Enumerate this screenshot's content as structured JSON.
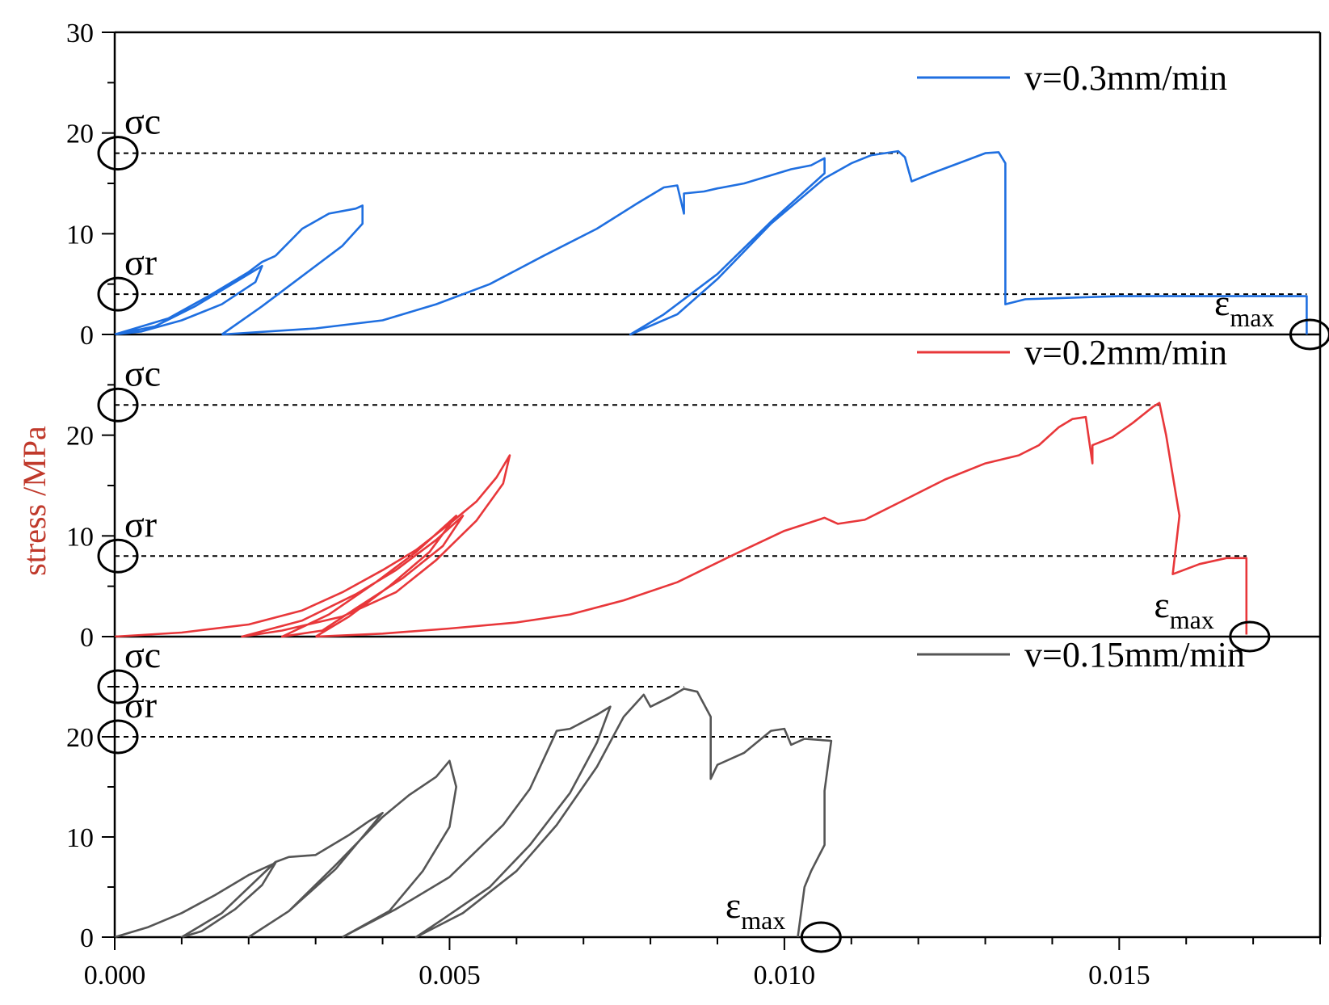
{
  "chart_data": {
    "type": "line",
    "ylabel": "stress /MPa",
    "xlabel": "",
    "xlim": [
      0,
      0.018
    ],
    "x_ticks": [
      "0.000",
      "0.005",
      "0.010",
      "0.015"
    ],
    "panels": [
      {
        "name": "top",
        "legend": "v=0.3mm/min",
        "color": "#1f6fe0",
        "ylim": [
          0,
          30
        ],
        "y_ticks": [
          "0",
          "10",
          "20",
          "30"
        ],
        "sigma_c": 18,
        "sigma_r": 4,
        "eps_max": 0.0178,
        "labels": {
          "sigma_c": "σc",
          "sigma_r": "σr",
          "eps": "ε",
          "eps_sub": "max"
        },
        "series": [
          [
            [
              0.0,
              0
            ],
            [
              0.0006,
              0.8
            ],
            [
              0.0012,
              2.8
            ],
            [
              0.0018,
              5.2
            ],
            [
              0.0022,
              6.8
            ],
            [
              0.0021,
              5.2
            ],
            [
              0.0016,
              3.0
            ],
            [
              0.001,
              1.4
            ],
            [
              0.0004,
              0.3
            ],
            [
              0.0,
              0
            ],
            [
              0.0008,
              1.6
            ],
            [
              0.0014,
              3.8
            ],
            [
              0.002,
              6.2
            ],
            [
              0.0022,
              7.2
            ],
            [
              0.0024,
              7.8
            ]
          ],
          [
            [
              0.0024,
              7.8
            ],
            [
              0.0028,
              10.5
            ],
            [
              0.0032,
              12.0
            ],
            [
              0.0036,
              12.5
            ],
            [
              0.0037,
              12.8
            ],
            [
              0.0037,
              11.0
            ],
            [
              0.0034,
              8.8
            ],
            [
              0.0028,
              5.8
            ],
            [
              0.0022,
              2.8
            ],
            [
              0.0016,
              0
            ]
          ],
          [
            [
              0.0016,
              0
            ],
            [
              0.003,
              0.6
            ],
            [
              0.004,
              1.4
            ],
            [
              0.0048,
              3.0
            ],
            [
              0.0056,
              5.0
            ],
            [
              0.0064,
              7.8
            ],
            [
              0.0072,
              10.5
            ],
            [
              0.0078,
              13.0
            ],
            [
              0.0082,
              14.6
            ],
            [
              0.0084,
              14.8
            ],
            [
              0.0085,
              12.0
            ],
            [
              0.0085,
              14.0
            ],
            [
              0.0088,
              14.2
            ],
            [
              0.009,
              14.5
            ],
            [
              0.0094,
              15.0
            ],
            [
              0.0098,
              15.8
            ],
            [
              0.0101,
              16.4
            ],
            [
              0.0104,
              16.8
            ],
            [
              0.0106,
              17.5
            ],
            [
              0.0106,
              16.0
            ],
            [
              0.0098,
              11.2
            ],
            [
              0.009,
              6.0
            ],
            [
              0.0082,
              2.0
            ],
            [
              0.0077,
              0
            ],
            [
              0.0084,
              2.0
            ],
            [
              0.009,
              5.5
            ],
            [
              0.0098,
              11.0
            ],
            [
              0.0106,
              15.5
            ],
            [
              0.011,
              17.0
            ],
            [
              0.0113,
              17.8
            ],
            [
              0.0117,
              18.2
            ],
            [
              0.0118,
              17.6
            ],
            [
              0.0119,
              15.2
            ],
            [
              0.0122,
              16.0
            ],
            [
              0.0126,
              17.0
            ],
            [
              0.013,
              18.0
            ],
            [
              0.0132,
              18.1
            ],
            [
              0.0133,
              17.0
            ],
            [
              0.0133,
              3.0
            ],
            [
              0.0136,
              3.5
            ],
            [
              0.015,
              3.8
            ],
            [
              0.0162,
              3.8
            ],
            [
              0.0178,
              3.8
            ],
            [
              0.0178,
              0
            ]
          ]
        ]
      },
      {
        "name": "middle",
        "legend": "v=0.2mm/min",
        "color": "#e8373a",
        "ylim": [
          0,
          30
        ],
        "y_ticks": [
          "0",
          "10",
          "20"
        ],
        "sigma_c": 23,
        "sigma_r": 8,
        "eps_max": 0.0169,
        "labels": {
          "sigma_c": "σc",
          "sigma_r": "σr",
          "eps": "ε",
          "eps_sub": "max"
        },
        "series": [
          [
            [
              0.0,
              0
            ],
            [
              0.001,
              0.4
            ],
            [
              0.002,
              1.2
            ],
            [
              0.0028,
              2.6
            ],
            [
              0.0034,
              4.4
            ],
            [
              0.004,
              6.6
            ],
            [
              0.0045,
              8.6
            ],
            [
              0.005,
              11.2
            ],
            [
              0.0054,
              13.4
            ],
            [
              0.0057,
              15.8
            ],
            [
              0.0059,
              18.0
            ],
            [
              0.0058,
              15.2
            ],
            [
              0.0054,
              11.5
            ],
            [
              0.0048,
              7.6
            ],
            [
              0.0042,
              4.4
            ],
            [
              0.0034,
              2.0
            ],
            [
              0.0025,
              0.6
            ],
            [
              0.0019,
              0
            ],
            [
              0.0028,
              1.6
            ],
            [
              0.0036,
              4.2
            ],
            [
              0.0042,
              6.6
            ],
            [
              0.0048,
              9.6
            ],
            [
              0.0052,
              12.0
            ],
            [
              0.0049,
              9.0
            ],
            [
              0.0043,
              5.8
            ],
            [
              0.0036,
              2.8
            ],
            [
              0.0031,
              0.6
            ],
            [
              0.0025,
              0
            ],
            [
              0.0032,
              2.2
            ],
            [
              0.0039,
              5.4
            ],
            [
              0.0045,
              8.4
            ],
            [
              0.0051,
              12.0
            ],
            [
              0.0047,
              8.4
            ],
            [
              0.0041,
              5.0
            ],
            [
              0.0035,
              2.0
            ],
            [
              0.003,
              0
            ]
          ],
          [
            [
              0.003,
              0
            ],
            [
              0.004,
              0.3
            ],
            [
              0.005,
              0.8
            ],
            [
              0.006,
              1.4
            ],
            [
              0.0068,
              2.2
            ],
            [
              0.0076,
              3.6
            ],
            [
              0.0084,
              5.4
            ],
            [
              0.0092,
              8.0
            ],
            [
              0.01,
              10.5
            ],
            [
              0.0106,
              11.8
            ],
            [
              0.0108,
              11.2
            ],
            [
              0.0112,
              11.6
            ],
            [
              0.0118,
              13.6
            ],
            [
              0.0124,
              15.6
            ],
            [
              0.013,
              17.2
            ],
            [
              0.0135,
              18.0
            ],
            [
              0.0138,
              19.0
            ],
            [
              0.0141,
              20.8
            ],
            [
              0.0143,
              21.6
            ],
            [
              0.0145,
              21.8
            ],
            [
              0.0146,
              17.2
            ],
            [
              0.0146,
              19.0
            ],
            [
              0.0149,
              19.8
            ],
            [
              0.0152,
              21.2
            ],
            [
              0.0155,
              22.8
            ],
            [
              0.0156,
              23.2
            ],
            [
              0.0157,
              20.0
            ],
            [
              0.0158,
              16.0
            ],
            [
              0.0159,
              12.0
            ],
            [
              0.0158,
              6.2
            ],
            [
              0.0162,
              7.2
            ],
            [
              0.0166,
              7.8
            ],
            [
              0.0169,
              7.8
            ],
            [
              0.0169,
              0.2
            ]
          ]
        ]
      },
      {
        "name": "bottom",
        "legend": "v=0.15mm/min",
        "color": "#555555",
        "ylim": [
          0,
          30
        ],
        "y_ticks": [
          "0",
          "10",
          "20"
        ],
        "sigma_c": 25,
        "sigma_r": 20,
        "eps_max": 0.0105,
        "labels": {
          "sigma_c": "σc",
          "sigma_r": "σr",
          "eps": "ε",
          "eps_sub": "max"
        },
        "series": [
          [
            [
              0.0,
              0
            ],
            [
              0.0005,
              1.0
            ],
            [
              0.001,
              2.4
            ],
            [
              0.0015,
              4.2
            ],
            [
              0.002,
              6.2
            ],
            [
              0.0024,
              7.4
            ],
            [
              0.0022,
              5.2
            ],
            [
              0.0018,
              2.8
            ],
            [
              0.0013,
              0.6
            ],
            [
              0.001,
              0
            ],
            [
              0.0016,
              2.4
            ],
            [
              0.0024,
              7.5
            ],
            [
              0.0026,
              8.0
            ],
            [
              0.0028,
              8.1
            ],
            [
              0.003,
              8.2
            ],
            [
              0.0035,
              10.2
            ],
            [
              0.0038,
              11.6
            ],
            [
              0.004,
              12.4
            ],
            [
              0.0038,
              10.8
            ],
            [
              0.0033,
              6.8
            ],
            [
              0.0026,
              2.6
            ],
            [
              0.002,
              0
            ],
            [
              0.0026,
              2.6
            ],
            [
              0.0033,
              7.2
            ],
            [
              0.004,
              12.0
            ],
            [
              0.0044,
              14.2
            ],
            [
              0.0048,
              16.0
            ],
            [
              0.005,
              17.6
            ],
            [
              0.0051,
              15.0
            ],
            [
              0.005,
              11.0
            ],
            [
              0.0046,
              6.6
            ],
            [
              0.0041,
              2.6
            ],
            [
              0.0034,
              0
            ]
          ],
          [
            [
              0.0034,
              0
            ],
            [
              0.0042,
              2.8
            ],
            [
              0.005,
              6.0
            ],
            [
              0.0058,
              11.2
            ],
            [
              0.0062,
              14.8
            ],
            [
              0.0066,
              20.6
            ],
            [
              0.0068,
              20.8
            ],
            [
              0.0072,
              22.2
            ],
            [
              0.0074,
              23.0
            ],
            [
              0.0072,
              19.4
            ],
            [
              0.0068,
              14.4
            ],
            [
              0.0062,
              9.2
            ],
            [
              0.0056,
              5.0
            ],
            [
              0.0049,
              1.8
            ],
            [
              0.0045,
              0
            ],
            [
              0.0052,
              2.4
            ],
            [
              0.006,
              6.6
            ],
            [
              0.0066,
              11.2
            ],
            [
              0.0072,
              17.0
            ],
            [
              0.0076,
              22.0
            ],
            [
              0.0079,
              24.2
            ],
            [
              0.008,
              23.0
            ],
            [
              0.0083,
              24.0
            ],
            [
              0.0085,
              24.8
            ],
            [
              0.0087,
              24.5
            ],
            [
              0.0089,
              22.0
            ],
            [
              0.0089,
              15.8
            ],
            [
              0.009,
              17.2
            ],
            [
              0.0094,
              18.4
            ],
            [
              0.0098,
              20.6
            ],
            [
              0.01,
              20.8
            ],
            [
              0.0101,
              19.2
            ],
            [
              0.0103,
              19.8
            ],
            [
              0.0107,
              19.6
            ],
            [
              0.0106,
              14.6
            ],
            [
              0.0106,
              9.2
            ],
            [
              0.0104,
              6.6
            ],
            [
              0.0103,
              5.0
            ],
            [
              0.0102,
              0
            ]
          ]
        ]
      }
    ]
  }
}
